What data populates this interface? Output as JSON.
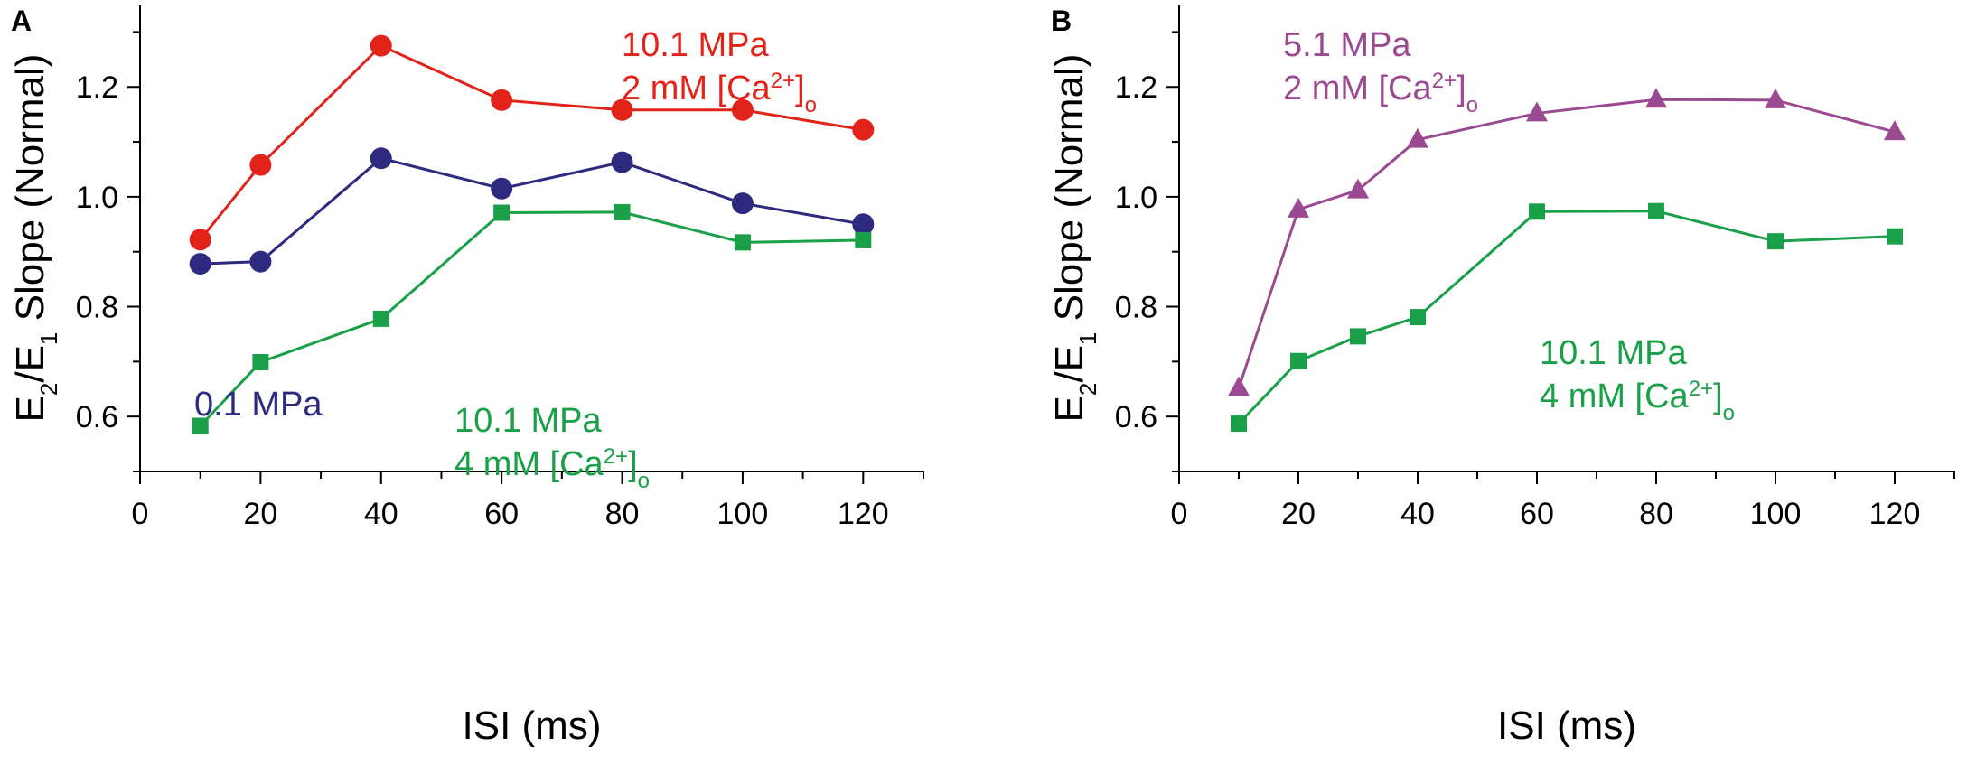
{
  "figure": {
    "panels": [
      "A",
      "B"
    ]
  },
  "chart_data": [
    {
      "type": "line",
      "panel": "A",
      "xlabel": "ISI (ms)",
      "ylabel": {
        "parts": [
          "E",
          "2",
          "/E",
          "1",
          " Slope (Normal)"
        ]
      },
      "xlim": [
        0,
        130
      ],
      "ylim": [
        0.5,
        1.35
      ],
      "xticks": [
        0,
        20,
        40,
        60,
        80,
        100,
        120
      ],
      "yticks": [
        0.6,
        0.8,
        1.0,
        1.2
      ],
      "ytick_labels": [
        "0.6",
        "0.8",
        "1.0",
        "1.2"
      ],
      "series": [
        {
          "name": "10.1 MPa, 2 mM [Ca2+]o",
          "color": "#e2231a",
          "marker": "circle",
          "x": [
            10,
            20,
            40,
            60,
            80,
            100,
            120
          ],
          "y": [
            0.922,
            1.058,
            1.275,
            1.176,
            1.158,
            1.158,
            1.122
          ]
        },
        {
          "name": "0.1 MPa",
          "color": "#2e2a7f",
          "marker": "circle",
          "x": [
            10,
            20,
            40,
            60,
            80,
            100,
            120
          ],
          "y": [
            0.878,
            0.882,
            1.07,
            1.015,
            1.063,
            0.988,
            0.95
          ]
        },
        {
          "name": "10.1 MPa, 4 mM [Ca2+]o",
          "color": "#1aa048",
          "marker": "square",
          "x": [
            10,
            20,
            40,
            60,
            80,
            100,
            120
          ],
          "y": [
            0.583,
            0.699,
            0.778,
            0.971,
            0.972,
            0.917,
            0.921
          ]
        }
      ],
      "annotations": [
        {
          "lines": [
            [
              "10.1 MPa"
            ],
            [
              "2 mM [Ca",
              "2+",
              "]",
              "o"
            ]
          ],
          "color": "#e2231a"
        },
        {
          "lines": [
            [
              "0.1 MPa"
            ]
          ],
          "color": "#2e2a7f"
        },
        {
          "lines": [
            [
              "10.1 MPa"
            ],
            [
              "4 mM [Ca",
              "2+",
              "]",
              "o"
            ]
          ],
          "color": "#1aa048"
        }
      ]
    },
    {
      "type": "line",
      "panel": "B",
      "xlabel": "ISI (ms)",
      "ylabel": {
        "parts": [
          "E",
          "2",
          "/E",
          "1",
          " Slope (Normal)"
        ]
      },
      "xlim": [
        0,
        130
      ],
      "ylim": [
        0.5,
        1.35
      ],
      "xticks": [
        0,
        20,
        40,
        60,
        80,
        100,
        120
      ],
      "yticks": [
        0.6,
        0.8,
        1.0,
        1.2
      ],
      "ytick_labels": [
        "0.6",
        "0.8",
        "1.0",
        "1.2"
      ],
      "series": [
        {
          "name": "5.1 MPa, 2 mM [Ca2+]o",
          "color": "#9b4a92",
          "marker": "triangle",
          "x": [
            10,
            20,
            30,
            40,
            60,
            80,
            100,
            120
          ],
          "y": [
            0.652,
            0.977,
            1.012,
            1.104,
            1.152,
            1.177,
            1.176,
            1.118
          ]
        },
        {
          "name": "10.1 MPa, 4 mM [Ca2+]o",
          "color": "#1aa048",
          "marker": "square",
          "x": [
            10,
            20,
            30,
            40,
            60,
            80,
            100,
            120
          ],
          "y": [
            0.587,
            0.701,
            0.746,
            0.781,
            0.973,
            0.974,
            0.919,
            0.928
          ]
        }
      ],
      "annotations": [
        {
          "lines": [
            [
              "5.1 MPa"
            ],
            [
              "2 mM [Ca",
              "2+",
              "]",
              "o"
            ]
          ],
          "color": "#9b4a92"
        },
        {
          "lines": [
            [
              "10.1 MPa"
            ],
            [
              "4 mM [Ca",
              "2+",
              "]",
              "o"
            ]
          ],
          "color": "#1aa048"
        }
      ]
    }
  ]
}
